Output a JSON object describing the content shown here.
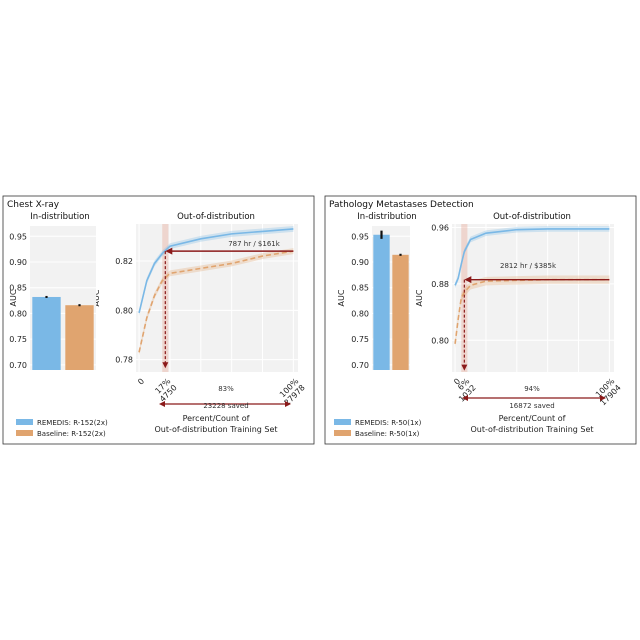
{
  "panels": [
    {
      "title": "Chest X-ray",
      "in_title": "In-distribution",
      "out_title": "Out-of-distribution",
      "ylabel": "AUC",
      "xlabel_line1": "Percent/Count of",
      "xlabel_line2": "Out-of-distribution Training Set",
      "legend": [
        {
          "label": "REMEDIS: R-152(2x)",
          "color": "#7ab8e6"
        },
        {
          "label": "Baseline: R-152(2x)",
          "color": "#e0a46f"
        }
      ],
      "annot_top": "787 hr / $161k",
      "annot_pct": "83%",
      "annot_saved": "23228 saved",
      "x_tick_labels": [
        {
          "x": 0,
          "l1": "0",
          "l2": ""
        },
        {
          "x": 17,
          "l1": "17%",
          "l2": "4750"
        },
        {
          "x": 100,
          "l1": "100%",
          "l2": "27978"
        }
      ]
    },
    {
      "title": "Pathology Metastases Detection",
      "in_title": "In-distribution",
      "out_title": "Out-of-distribution",
      "ylabel": "AUC",
      "xlabel_line1": "Percent/Count of",
      "xlabel_line2": "Out-of-distribution Training Set",
      "legend": [
        {
          "label": "REMEDIS: R-50(1x)",
          "color": "#7ab8e6"
        },
        {
          "label": "Baseline: R-50(1x)",
          "color": "#e0a46f"
        }
      ],
      "annot_top": "2812 hr / $385k",
      "annot_pct": "94%",
      "annot_saved": "16872 saved",
      "x_tick_labels": [
        {
          "x": 0,
          "l1": "0",
          "l2": ""
        },
        {
          "x": 6,
          "l1": "6%",
          "l2": "1032"
        },
        {
          "x": 100,
          "l1": "100%",
          "l2": "17904"
        }
      ]
    }
  ],
  "chart_data": [
    {
      "type": "bar",
      "panel": "Chest X-ray",
      "subplot": "In-distribution",
      "ylabel": "AUC",
      "ylim": [
        0.69,
        0.97
      ],
      "yticks": [
        "0.70",
        "0.75",
        "0.80",
        "0.85",
        "0.90",
        "0.95"
      ],
      "series": [
        {
          "name": "REMEDIS: R-152(2x)",
          "value": 0.832,
          "err": 0.002,
          "color": "#7ab8e6"
        },
        {
          "name": "Baseline: R-152(2x)",
          "value": 0.816,
          "err": 0.002,
          "color": "#e0a46f"
        }
      ]
    },
    {
      "type": "line",
      "panel": "Chest X-ray",
      "subplot": "Out-of-distribution",
      "ylabel": "AUC",
      "xlim": [
        -2,
        103
      ],
      "ylim": [
        0.775,
        0.835
      ],
      "yticks": [
        "0.78",
        "0.80",
        "0.82"
      ],
      "series": [
        {
          "name": "REMEDIS: R-152(2x)",
          "color": "#7ab8e6",
          "dash": false,
          "x": [
            0,
            5,
            10,
            15,
            20,
            40,
            60,
            80,
            100
          ],
          "y": [
            0.799,
            0.812,
            0.819,
            0.823,
            0.826,
            0.829,
            0.831,
            0.832,
            0.833
          ],
          "band": 0.0012
        },
        {
          "name": "Baseline: R-152(2x)",
          "color": "#e0a46f",
          "dash": true,
          "x": [
            0,
            5,
            10,
            15,
            20,
            40,
            60,
            80,
            100
          ],
          "y": [
            0.783,
            0.797,
            0.806,
            0.812,
            0.815,
            0.817,
            0.819,
            0.822,
            0.824
          ],
          "band": 0.0012
        }
      ],
      "arrow_h": {
        "y": 0.824,
        "x_from": 100,
        "x_to": 17
      },
      "arrow_v": {
        "x": 17,
        "y_from": 0.824,
        "y_to": 0.7765
      },
      "span": {
        "x0": 15,
        "x1": 19
      }
    },
    {
      "type": "bar",
      "panel": "Pathology Metastases Detection",
      "subplot": "In-distribution",
      "ylabel": "AUC",
      "ylim": [
        0.69,
        0.97
      ],
      "yticks": [
        "0.70",
        "0.75",
        "0.80",
        "0.85",
        "0.90",
        "0.95"
      ],
      "series": [
        {
          "name": "REMEDIS: R-50(1x)",
          "value": 0.953,
          "err": 0.008,
          "color": "#7ab8e6"
        },
        {
          "name": "Baseline: R-50(1x)",
          "value": 0.914,
          "err": 0.002,
          "color": "#e0a46f"
        }
      ]
    },
    {
      "type": "line",
      "panel": "Pathology Metastases Detection",
      "subplot": "Out-of-distribution",
      "ylabel": "AUC",
      "xlim": [
        -2,
        103
      ],
      "ylim": [
        0.755,
        0.965
      ],
      "yticks": [
        "0.80",
        "0.88",
        "0.96"
      ],
      "series": [
        {
          "name": "REMEDIS: R-50(1x)",
          "color": "#7ab8e6",
          "dash": false,
          "x": [
            0,
            2,
            4,
            6,
            10,
            20,
            40,
            60,
            80,
            100
          ],
          "y": [
            0.878,
            0.888,
            0.908,
            0.926,
            0.943,
            0.952,
            0.957,
            0.958,
            0.958,
            0.958
          ],
          "band": 0.004
        },
        {
          "name": "Baseline: R-50(1x)",
          "color": "#e0a46f",
          "dash": true,
          "x": [
            0,
            2,
            4,
            6,
            10,
            20,
            40,
            60,
            80,
            100
          ],
          "y": [
            0.795,
            0.83,
            0.86,
            0.868,
            0.878,
            0.884,
            0.885,
            0.886,
            0.886,
            0.886
          ],
          "band": 0.006
        }
      ],
      "arrow_h": {
        "y": 0.886,
        "x_from": 100,
        "x_to": 6
      },
      "arrow_v": {
        "x": 6,
        "y_from": 0.886,
        "y_to": 0.757
      },
      "span": {
        "x0": 4,
        "x1": 8
      }
    }
  ]
}
